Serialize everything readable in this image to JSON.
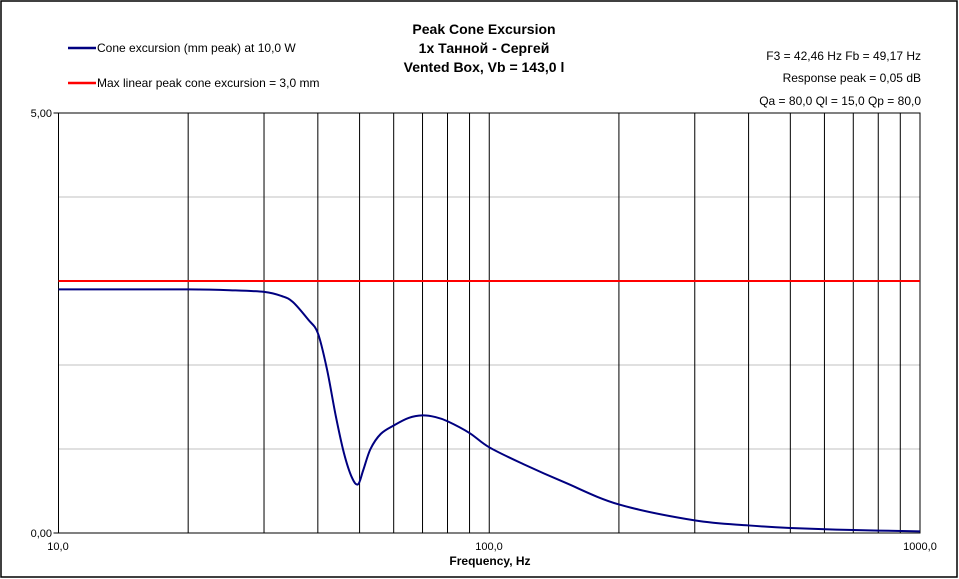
{
  "chart_data": {
    "type": "line",
    "title": [
      "Peak Cone Excursion",
      "1x Танной - Сергей",
      "Vented Box, Vb = 143,0 l"
    ],
    "xlabel": "Frequency, Hz",
    "ylabel": "",
    "xscale": "log",
    "xlim": [
      10,
      1000
    ],
    "ylim": [
      0,
      5
    ],
    "xticks": [
      {
        "v": 10,
        "label": "10,0"
      },
      {
        "v": 100,
        "label": "100,0"
      },
      {
        "v": 1000,
        "label": "1000,0"
      }
    ],
    "yticks": [
      {
        "v": 0,
        "label": "0,00"
      },
      {
        "v": 5,
        "label": "5,00"
      }
    ],
    "x_grid": [
      20,
      30,
      40,
      50,
      60,
      70,
      80,
      90,
      100,
      200,
      300,
      400,
      500,
      600,
      700,
      800,
      900
    ],
    "y_grid": [
      1,
      2,
      3,
      4
    ],
    "legend_position": "top-left",
    "annotations": [
      "F3 = 42,46 Hz  Fb = 49,17 Hz",
      "Response peak = 0,05 dB",
      "Qa = 80,0  Ql = 15,0  Qp = 80,0"
    ],
    "series": [
      {
        "name": "Cone excursion (mm peak) at 10,0 W",
        "color": "#000080",
        "x": [
          10,
          15,
          20,
          25,
          30,
          33,
          35,
          38,
          40,
          42,
          44,
          46,
          48,
          49.6,
          51,
          53,
          56,
          60,
          65,
          70,
          75,
          80,
          90,
          100,
          120,
          150,
          200,
          300,
          400,
          500,
          700,
          1000
        ],
        "y": [
          2.9,
          2.9,
          2.9,
          2.89,
          2.87,
          2.82,
          2.75,
          2.54,
          2.38,
          1.95,
          1.4,
          0.95,
          0.66,
          0.58,
          0.75,
          1.0,
          1.18,
          1.28,
          1.37,
          1.4,
          1.38,
          1.33,
          1.19,
          1.02,
          0.82,
          0.6,
          0.34,
          0.15,
          0.09,
          0.06,
          0.035,
          0.02
        ]
      },
      {
        "name": "Max linear peak cone excursion = 3,0 mm",
        "color": "#ff0000",
        "x": [
          10,
          1000
        ],
        "y": [
          3.0,
          3.0
        ]
      }
    ]
  }
}
